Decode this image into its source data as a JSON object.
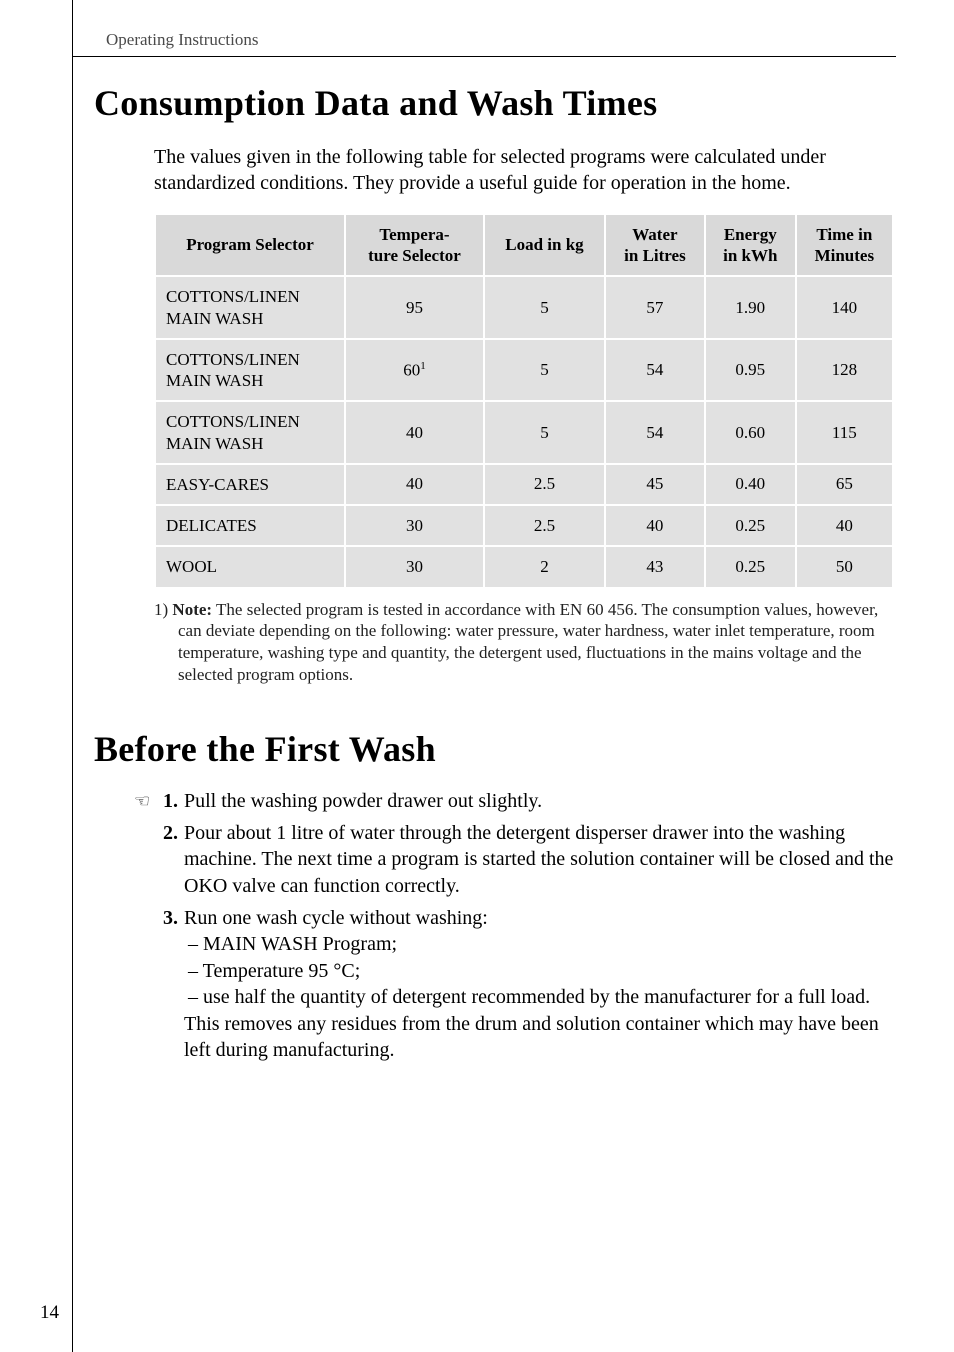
{
  "running_head": "Operating Instructions",
  "page_number": "14",
  "section1": {
    "title": "Consumption Data and Wash Times",
    "intro": "The values given in the following table for selected programs were calculated under standardized conditions. They provide a useful guide for operation in the home."
  },
  "table": {
    "columns": [
      "Program Selector",
      "Tempera-\nture Selector",
      "Load in kg",
      "Water\nin Litres",
      "Energy\nin kWh",
      "Time in\nMinutes"
    ],
    "rows": [
      {
        "program": "COTTONS/LINEN\nMAIN WASH",
        "temp": "95",
        "temp_sup": "",
        "load": "5",
        "water": "57",
        "energy": "1.90",
        "time": "140"
      },
      {
        "program": "COTTONS/LINEN\nMAIN WASH",
        "temp": "60",
        "temp_sup": "1",
        "load": "5",
        "water": "54",
        "energy": "0.95",
        "time": "128"
      },
      {
        "program": "COTTONS/LINEN\nMAIN WASH",
        "temp": "40",
        "temp_sup": "",
        "load": "5",
        "water": "54",
        "energy": "0.60",
        "time": "115"
      },
      {
        "program": "EASY-CARES",
        "temp": "40",
        "temp_sup": "",
        "load": "2.5",
        "water": "45",
        "energy": "0.40",
        "time": "65"
      },
      {
        "program": "DELICATES",
        "temp": "30",
        "temp_sup": "",
        "load": "2.5",
        "water": "40",
        "energy": "0.25",
        "time": "40"
      },
      {
        "program": "WOOL",
        "temp": "30",
        "temp_sup": "",
        "load": "2",
        "water": "43",
        "energy": "0.25",
        "time": "50"
      }
    ]
  },
  "footnote": {
    "marker": "1)",
    "label": "Note:",
    "text": " The selected program is tested in accordance with EN 60 456. The consumption values, however, can deviate depending on the following: water pressure, water hardness, water inlet temperature, room temperature, washing type and quantity, the detergent used, fluctuations in the mains voltage and the selected program options."
  },
  "section2": {
    "title": "Before the First Wash",
    "steps": [
      {
        "num": "1.",
        "body": "Pull the washing powder drawer out slightly.",
        "icon": true
      },
      {
        "num": "2.",
        "body": "Pour about 1 litre of water through the detergent disperser drawer into the washing machine. The next time a program is started the solution container will be closed and the OKO valve can function correctly.",
        "icon": false
      },
      {
        "num": "3.",
        "body": "Run one wash cycle without washing:",
        "icon": false,
        "subs": [
          "– MAIN WASH Program;",
          "– Temperature 95 °C;",
          "– use half the quantity of detergent recommended by the manufacturer for a full load."
        ],
        "tail": "This removes any residues from the drum and solution container which may have been left during manufacturing."
      }
    ]
  }
}
